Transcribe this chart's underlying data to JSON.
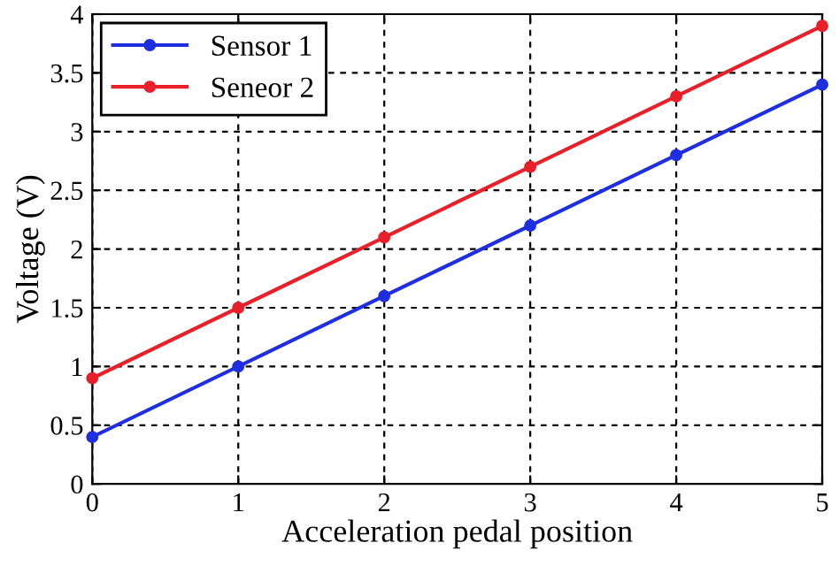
{
  "chart_data": {
    "type": "line",
    "xlabel": "Acceleration pedal position",
    "ylabel": "Voltage (V)",
    "x": [
      0,
      1,
      2,
      3,
      4,
      5
    ],
    "series": [
      {
        "name": "Sensor 1",
        "color": "#1f2fe0",
        "values": [
          0.4,
          1.0,
          1.6,
          2.2,
          2.8,
          3.4
        ]
      },
      {
        "name": "Seneor 2",
        "color": "#e8202a",
        "values": [
          0.9,
          1.5,
          2.1,
          2.7,
          3.3,
          3.9
        ]
      }
    ],
    "xlim": [
      0,
      5
    ],
    "xticks": [
      0,
      1,
      2,
      3,
      4,
      5
    ],
    "ylim": [
      0,
      4
    ],
    "yticks": [
      0,
      0.5,
      1,
      1.5,
      2,
      2.5,
      3,
      3.5,
      4
    ],
    "grid": true,
    "legend": "top left",
    "marker": "circle",
    "line_style": "solid"
  }
}
